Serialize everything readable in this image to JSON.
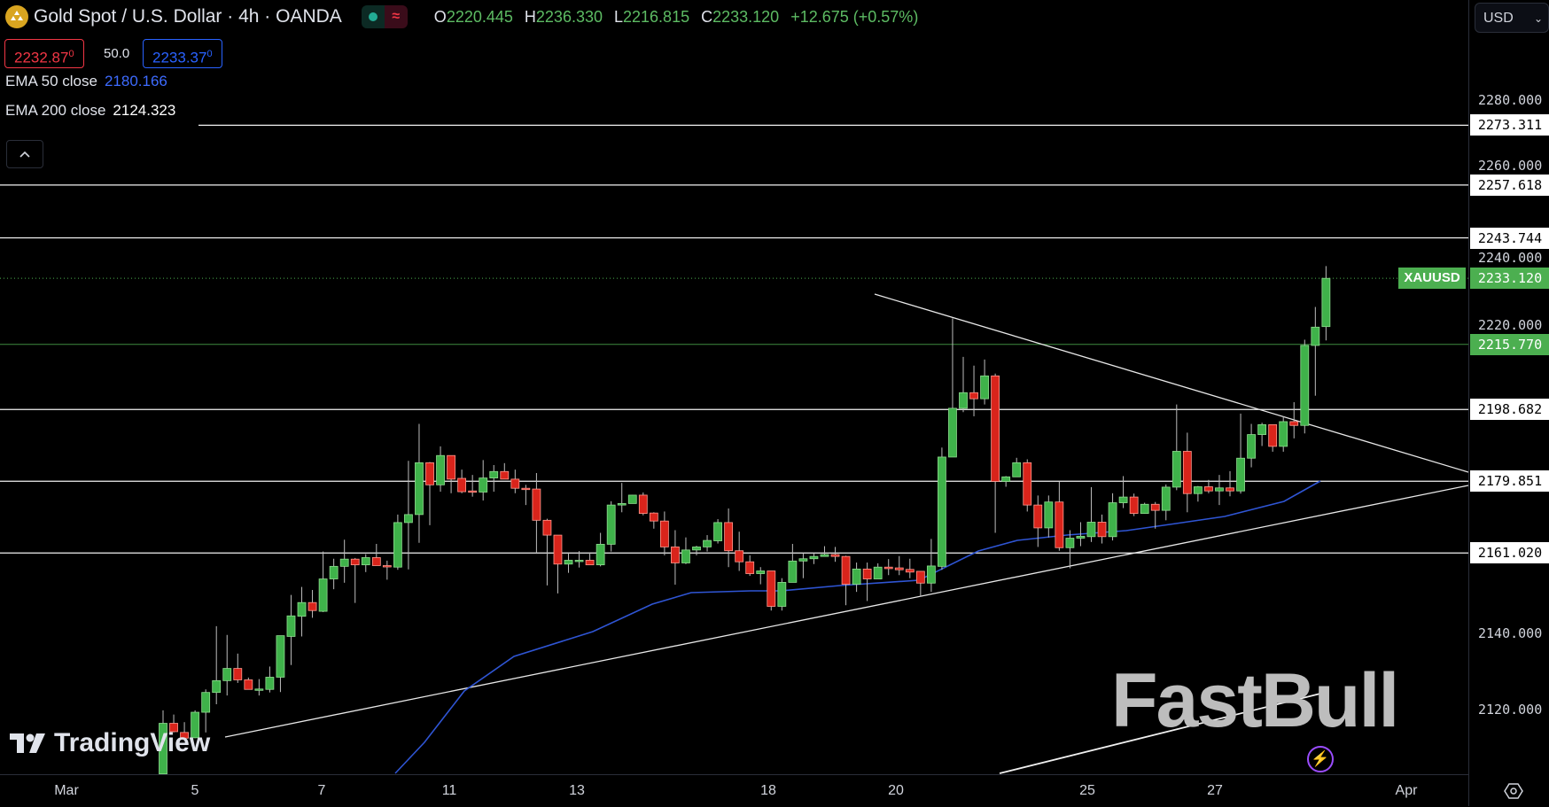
{
  "header": {
    "symbol_title": "Gold Spot / U.S. Dollar · 4h · OANDA",
    "ohlc": [
      {
        "key": "O",
        "value": "2220.445"
      },
      {
        "key": "H",
        "value": "2236.330"
      },
      {
        "key": "L",
        "value": "2216.815"
      },
      {
        "key": "C",
        "value": "2233.120"
      }
    ],
    "change": "+12.675 (+0.57%)",
    "bid": {
      "main": "2232.87",
      "sup": "0"
    },
    "spread": "50.0",
    "ask": {
      "main": "2233.37",
      "sup": "0"
    },
    "ema50": {
      "label": "EMA 50 close",
      "value": "2180.166"
    },
    "ema200": {
      "label": "EMA 200 close",
      "value": "2124.323"
    }
  },
  "currency": "USD",
  "colors": {
    "up": "#3fb24a",
    "down": "#d9241b",
    "ema50": "#2f55d4",
    "accent_green": "#4caf50"
  },
  "watermarks": {
    "tradingview": "TradingView",
    "fastbull": "FastBull"
  },
  "chart_data": {
    "type": "candlestick",
    "symbol": "XAUUSD",
    "interval": "4h",
    "last_price": 2233.12,
    "price_ticks": [
      "2280.000",
      "2260.000",
      "2240.000",
      "2220.000",
      "2140.000",
      "2120.000"
    ],
    "time_labels": [
      "Mar",
      "5",
      "7",
      "11",
      "13",
      "18",
      "20",
      "25",
      "27",
      "Apr"
    ],
    "horizontal_levels": [
      {
        "price": 2273.311,
        "label": "2273.311",
        "color": "#ffffff"
      },
      {
        "price": 2257.618,
        "label": "2257.618",
        "color": "#ffffff"
      },
      {
        "price": 2243.744,
        "label": "2243.744",
        "color": "#ffffff"
      },
      {
        "price": 2215.77,
        "label": "2215.770",
        "color": "#4caf50"
      },
      {
        "price": 2198.682,
        "label": "2198.682",
        "color": "#ffffff"
      },
      {
        "price": 2179.851,
        "label": "2179.851",
        "color": "#ffffff"
      },
      {
        "price": 2161.02,
        "label": "2161.020",
        "color": "#ffffff"
      }
    ],
    "last_price_label": {
      "symbol": "XAUUSD",
      "value": "2233.120"
    },
    "ylim": [
      2100,
      2283
    ],
    "candles_ohlc": [
      [
        2103,
        2119.7,
        2100,
        2116.3
      ],
      [
        2116.3,
        2118.6,
        2113.9,
        2114.1
      ],
      [
        2113.9,
        2116.6,
        2112,
        2112.4
      ],
      [
        2112.5,
        2119.7,
        2112.4,
        2119.2
      ],
      [
        2119.2,
        2125.2,
        2113.9,
        2124.4
      ],
      [
        2124.4,
        2141.8,
        2121.3,
        2127.5
      ],
      [
        2127.5,
        2139.5,
        2123.6,
        2130.7
      ],
      [
        2130.7,
        2134.6,
        2126.9,
        2127.7
      ],
      [
        2127.7,
        2128.3,
        2125.2,
        2125.2
      ],
      [
        2125.2,
        2127.9,
        2123.6,
        2125.3
      ],
      [
        2125.2,
        2131.2,
        2124.4,
        2128.4
      ],
      [
        2128.4,
        2139.3,
        2124.5,
        2139.3
      ],
      [
        2139.1,
        2150,
        2131.6,
        2144.5
      ],
      [
        2144.4,
        2152.1,
        2139.1,
        2148
      ],
      [
        2148,
        2151.3,
        2144,
        2145.9
      ],
      [
        2145.7,
        2161.4,
        2145.5,
        2154.2
      ],
      [
        2154.2,
        2159.5,
        2151.5,
        2157.5
      ],
      [
        2157.5,
        2164.5,
        2153.2,
        2159.4
      ],
      [
        2159.4,
        2159.7,
        2147.9,
        2157.9
      ],
      [
        2157.9,
        2160.7,
        2156,
        2159.8
      ],
      [
        2159.8,
        2163.4,
        2157.7,
        2157.7
      ],
      [
        2157.7,
        2159,
        2154,
        2157.6
      ],
      [
        2157.3,
        2171.1,
        2156.6,
        2169
      ],
      [
        2169,
        2185.2,
        2156.7,
        2171.1
      ],
      [
        2171.1,
        2194.9,
        2163.7,
        2184.7
      ],
      [
        2184.7,
        2184.9,
        2168.3,
        2178.9
      ],
      [
        2178.9,
        2189,
        2177.1,
        2186.6
      ],
      [
        2186.6,
        2186.6,
        2176.7,
        2180.4
      ],
      [
        2180.6,
        2182.9,
        2176.7,
        2177.1
      ],
      [
        2177.3,
        2181.5,
        2175.8,
        2177.1
      ],
      [
        2177,
        2185.4,
        2174.8,
        2180.7
      ],
      [
        2180.7,
        2184.1,
        2177.1,
        2182.4
      ],
      [
        2182.4,
        2184.6,
        2180.4,
        2180.4
      ],
      [
        2180.4,
        2182.9,
        2176.7,
        2178
      ],
      [
        2178,
        2178.9,
        2173.6,
        2177.8
      ],
      [
        2177.8,
        2182,
        2160.8,
        2169.6
      ],
      [
        2169.6,
        2170,
        2152.5,
        2165.7
      ],
      [
        2165.7,
        2165.7,
        2150.4,
        2158.1
      ],
      [
        2158.1,
        2161.2,
        2155.8,
        2159.1
      ],
      [
        2159.1,
        2161.5,
        2157.2,
        2159.1
      ],
      [
        2159.1,
        2161.2,
        2157.9,
        2157.9
      ],
      [
        2157.9,
        2166.3,
        2157.5,
        2163.3
      ],
      [
        2163.3,
        2174.6,
        2161.4,
        2173.6
      ],
      [
        2173.6,
        2179.4,
        2171.7,
        2174
      ],
      [
        2174,
        2176.3,
        2174,
        2176.2
      ],
      [
        2176.2,
        2176.9,
        2170.9,
        2171.4
      ],
      [
        2171.5,
        2171.7,
        2167.4,
        2169.4
      ],
      [
        2169.4,
        2171.9,
        2160.4,
        2162.6
      ],
      [
        2162.6,
        2167,
        2152.7,
        2158.4
      ],
      [
        2158.4,
        2165.1,
        2158.1,
        2161.8
      ],
      [
        2161.8,
        2162.9,
        2160.4,
        2162.6
      ],
      [
        2162.6,
        2165.7,
        2161.4,
        2164.3
      ],
      [
        2164.2,
        2169.9,
        2163.5,
        2169
      ],
      [
        2169,
        2172.7,
        2157.3,
        2161.6
      ],
      [
        2161.6,
        2166.6,
        2156.3,
        2158.7
      ],
      [
        2158.7,
        2160.4,
        2155,
        2155.6
      ],
      [
        2155.6,
        2157.3,
        2152.8,
        2156.3
      ],
      [
        2156.3,
        2156.3,
        2145.9,
        2147
      ],
      [
        2147,
        2154.4,
        2145.9,
        2153.3
      ],
      [
        2153.3,
        2163.4,
        2153.5,
        2158.9
      ],
      [
        2158.9,
        2161,
        2154.4,
        2159.5
      ],
      [
        2159.5,
        2161,
        2158.1,
        2160.1
      ],
      [
        2160.1,
        2162.8,
        2160.1,
        2160.6
      ],
      [
        2160.6,
        2162.6,
        2158.7,
        2160.1
      ],
      [
        2160.1,
        2160.3,
        2147.3,
        2152.8
      ],
      [
        2152.8,
        2158.5,
        2150.8,
        2156.8
      ],
      [
        2156.8,
        2158.5,
        2148.4,
        2154.2
      ],
      [
        2154.2,
        2158.3,
        2154.2,
        2157.3
      ],
      [
        2157.3,
        2159.4,
        2155.2,
        2156.9
      ],
      [
        2157.1,
        2160.2,
        2155.2,
        2156.6
      ],
      [
        2156.7,
        2159.5,
        2154.4,
        2156
      ],
      [
        2156.2,
        2156.3,
        2149.6,
        2153.1
      ],
      [
        2153.1,
        2164.7,
        2150.8,
        2157.6
      ],
      [
        2157.5,
        2188.7,
        2156.6,
        2186.2
      ],
      [
        2186.2,
        2222.6,
        2186.2,
        2199
      ],
      [
        2199,
        2212.5,
        2198,
        2203.1
      ],
      [
        2203.1,
        2210.2,
        2196.9,
        2201.5
      ],
      [
        2201.5,
        2211.8,
        2200,
        2207.5
      ],
      [
        2207.5,
        2208.1,
        2166.3,
        2179.8
      ],
      [
        2179.8,
        2181.2,
        2178.4,
        2181
      ],
      [
        2181,
        2186,
        2181,
        2184.7
      ],
      [
        2184.7,
        2185.6,
        2171.9,
        2173.6
      ],
      [
        2173.6,
        2176.1,
        2162.6,
        2167.6
      ],
      [
        2167.6,
        2176.1,
        2165.1,
        2174.4
      ],
      [
        2174.4,
        2179.8,
        2161.6,
        2162.4
      ],
      [
        2162.4,
        2167,
        2157,
        2164.9
      ],
      [
        2164.9,
        2169.1,
        2162.8,
        2165.4
      ],
      [
        2165.3,
        2178.3,
        2163.9,
        2169.1
      ],
      [
        2169.1,
        2171.1,
        2163.5,
        2165.3
      ],
      [
        2165.3,
        2176.7,
        2164.3,
        2174.2
      ],
      [
        2174.2,
        2181.2,
        2172.8,
        2175.7
      ],
      [
        2175.7,
        2176.6,
        2170.7,
        2171.4
      ],
      [
        2171.4,
        2174.2,
        2171.3,
        2173.8
      ],
      [
        2173.8,
        2174.4,
        2167.4,
        2172.2
      ],
      [
        2172.2,
        2179,
        2169.6,
        2178.3
      ],
      [
        2178.3,
        2200,
        2177.5,
        2187.7
      ],
      [
        2187.7,
        2192.6,
        2171.7,
        2176.6
      ],
      [
        2176.6,
        2178.6,
        2174.5,
        2178.4
      ],
      [
        2178.4,
        2180.2,
        2176.7,
        2177.3
      ],
      [
        2177.3,
        2181.5,
        2173.6,
        2178.1
      ],
      [
        2178.1,
        2182.5,
        2175.9,
        2177.3
      ],
      [
        2177.3,
        2197.6,
        2176.6,
        2185.9
      ],
      [
        2185.9,
        2194.9,
        2183.5,
        2192.1
      ],
      [
        2192.1,
        2195.2,
        2189.1,
        2194.7
      ],
      [
        2194.7,
        2194.7,
        2187.6,
        2189
      ],
      [
        2189,
        2196.9,
        2187.6,
        2195.5
      ],
      [
        2195.5,
        2200.6,
        2191.1,
        2194.5
      ],
      [
        2194.5,
        2217,
        2192.4,
        2215.5
      ],
      [
        2215.5,
        2225.6,
        2202.3,
        2220.3
      ],
      [
        2220.445,
        2236.33,
        2216.815,
        2233.12
      ]
    ],
    "ema50_last": 2180.166,
    "grid": false,
    "legend": "top-left"
  }
}
